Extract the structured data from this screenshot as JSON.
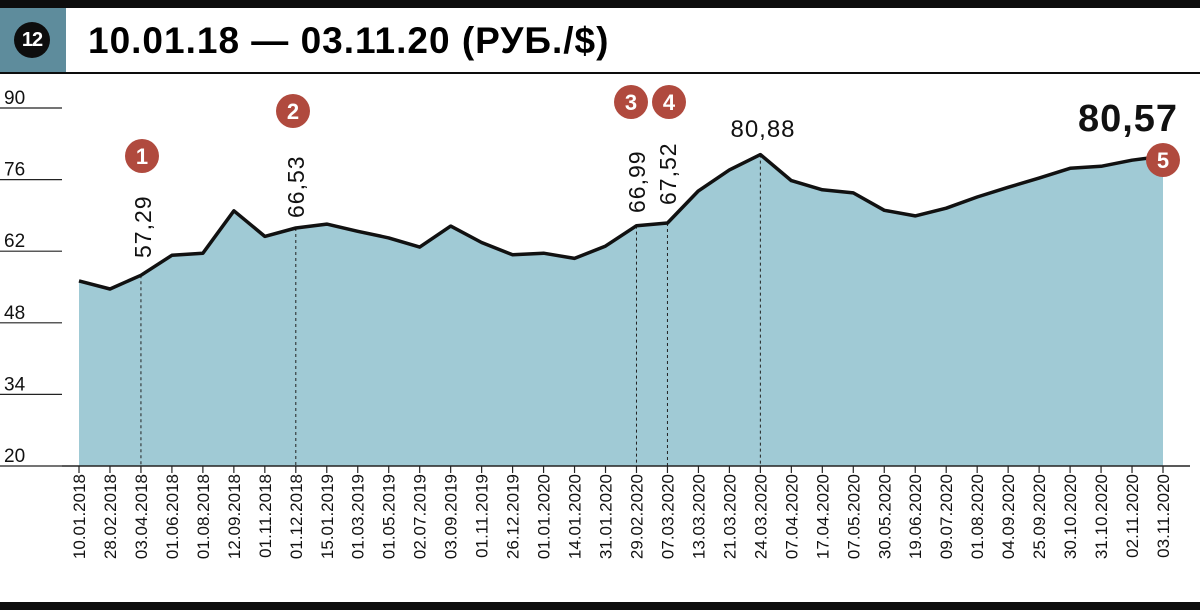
{
  "header": {
    "badge": "12",
    "title": "10.01.18 — 03.11.20 (РУБ./$)"
  },
  "chart_data": {
    "type": "area",
    "title": "10.01.18 — 03.11.20 (РУБ./$)",
    "ylim": [
      20,
      90
    ],
    "yticks": [
      "90",
      "76",
      "62",
      "48",
      "34",
      "20"
    ],
    "area_color": "#a0cad5",
    "line_color": "#111111",
    "marker_color": "#b04a3e",
    "categories": [
      "10.01.2018",
      "28.02.2018",
      "03.04.2018",
      "01.06.2018",
      "01.08.2018",
      "12.09.2018",
      "01.11.2018",
      "01.12.2018",
      "15.01.2019",
      "01.03.2019",
      "01.05.2019",
      "02.07.2019",
      "03.09.2019",
      "01.11.2019",
      "26.12.2019",
      "01.01.2020",
      "14.01.2020",
      "31.01.2020",
      "29.02.2020",
      "07.03.2020",
      "13.03.2020",
      "21.03.2020",
      "24.03.2020",
      "07.04.2020",
      "17.04.2020",
      "07.05.2020",
      "30.05.2020",
      "19.06.2020",
      "09.07.2020",
      "01.08.2020",
      "04.09.2020",
      "25.09.2020",
      "30.10.2020",
      "31.10.2020",
      "02.11.2020",
      "03.11.2020"
    ],
    "values": [
      56.2,
      54.6,
      57.29,
      61.2,
      61.6,
      69.9,
      64.9,
      66.53,
      67.3,
      65.9,
      64.6,
      62.8,
      66.9,
      63.7,
      61.3,
      61.6,
      60.6,
      63.0,
      66.99,
      67.52,
      73.8,
      77.9,
      80.88,
      75.8,
      74.0,
      73.4,
      70.0,
      68.9,
      70.4,
      72.6,
      74.5,
      76.3,
      78.2,
      78.6,
      79.8,
      80.57
    ],
    "annotations": [
      {
        "marker": "1",
        "value_label": "57,29",
        "index": 2
      },
      {
        "marker": "2",
        "value_label": "66,53",
        "index": 7
      },
      {
        "marker": "3",
        "value_label": "66,99",
        "index": 18
      },
      {
        "marker": "4",
        "value_label": "67,52",
        "index": 19
      },
      {
        "peak_label": "80,88",
        "index": 22
      },
      {
        "marker": "5",
        "value_label": "80,57",
        "index": 35
      }
    ]
  }
}
